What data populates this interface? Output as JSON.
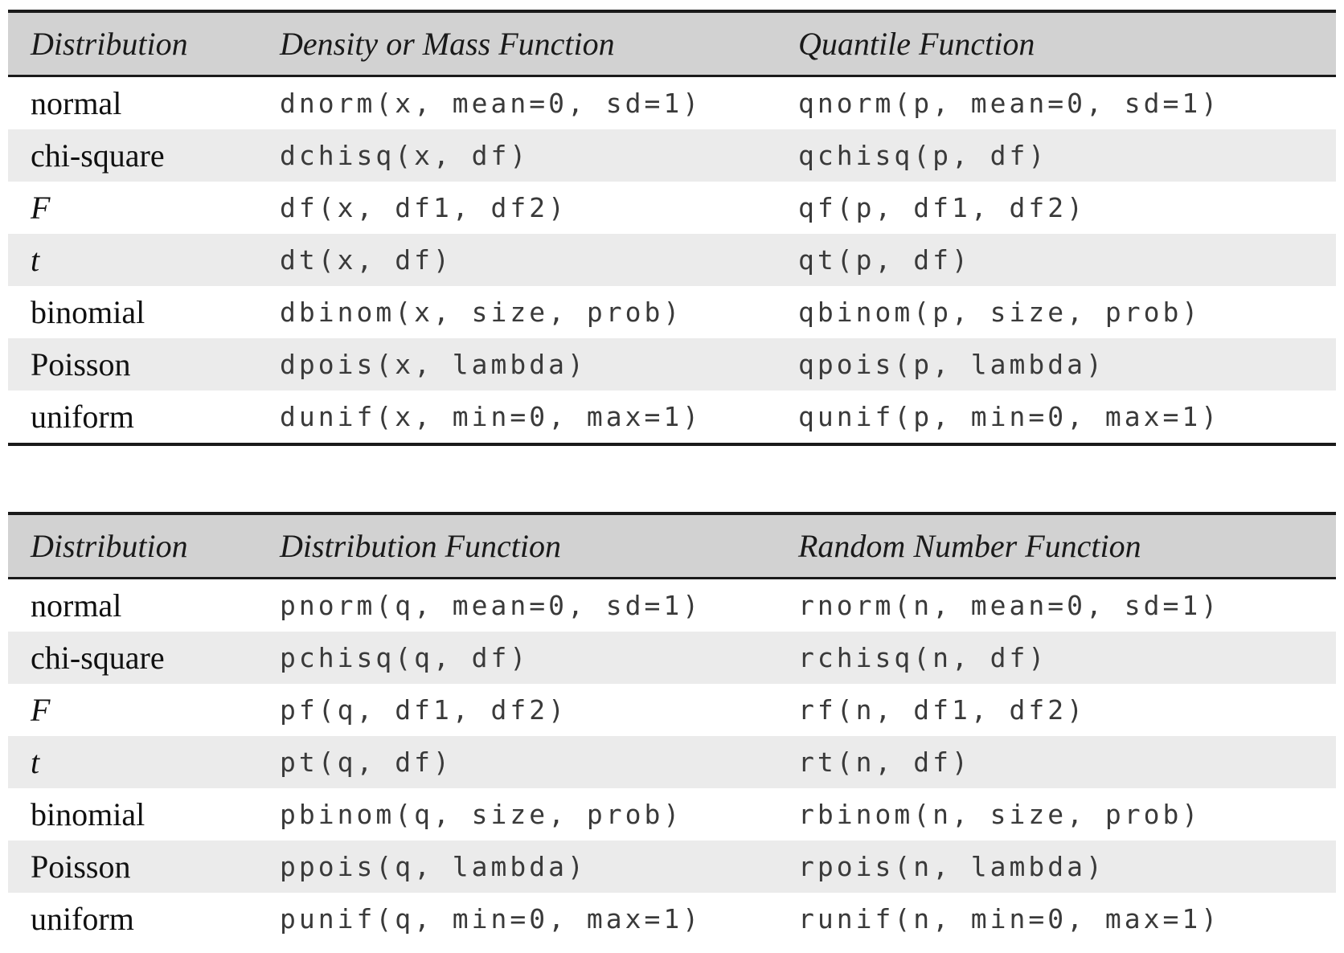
{
  "style": {
    "header_bg": "#d2d2d2",
    "alt_row_bg": "#ebebeb",
    "rule_color": "#1a1a1a",
    "code_color": "#3a3a3a"
  },
  "tables": [
    {
      "headers": [
        "Distribution",
        "Density or Mass Function",
        "Quantile Function"
      ],
      "rows": [
        {
          "name": "normal",
          "fn1": "dnorm(x, mean=0, sd=1)",
          "fn2": "qnorm(p, mean=0, sd=1)"
        },
        {
          "name": "chi-square",
          "fn1": "dchisq(x, df)",
          "fn2": "qchisq(p, df)"
        },
        {
          "name": "F",
          "fn1": "df(x, df1, df2)",
          "fn2": "qf(p, df1, df2)"
        },
        {
          "name": "t",
          "fn1": "dt(x, df)",
          "fn2": "qt(p, df)"
        },
        {
          "name": "binomial",
          "fn1": "dbinom(x, size, prob)",
          "fn2": "qbinom(p, size, prob)"
        },
        {
          "name": "Poisson",
          "fn1": "dpois(x, lambda)",
          "fn2": "qpois(p, lambda)"
        },
        {
          "name": "uniform",
          "fn1": "dunif(x, min=0, max=1)",
          "fn2": "qunif(p, min=0, max=1)"
        }
      ]
    },
    {
      "headers": [
        "Distribution",
        "Distribution Function",
        "Random Number Function"
      ],
      "rows": [
        {
          "name": "normal",
          "fn1": "pnorm(q, mean=0, sd=1)",
          "fn2": "rnorm(n, mean=0, sd=1)"
        },
        {
          "name": "chi-square",
          "fn1": "pchisq(q, df)",
          "fn2": "rchisq(n, df)"
        },
        {
          "name": "F",
          "fn1": "pf(q, df1, df2)",
          "fn2": "rf(n, df1, df2)"
        },
        {
          "name": "t",
          "fn1": "pt(q, df)",
          "fn2": "rt(n, df)"
        },
        {
          "name": "binomial",
          "fn1": "pbinom(q, size, prob)",
          "fn2": "rbinom(n, size, prob)"
        },
        {
          "name": "Poisson",
          "fn1": "ppois(q, lambda)",
          "fn2": "rpois(n, lambda)"
        },
        {
          "name": "uniform",
          "fn1": "punif(q, min=0, max=1)",
          "fn2": "runif(n, min=0, max=1)"
        }
      ]
    }
  ]
}
